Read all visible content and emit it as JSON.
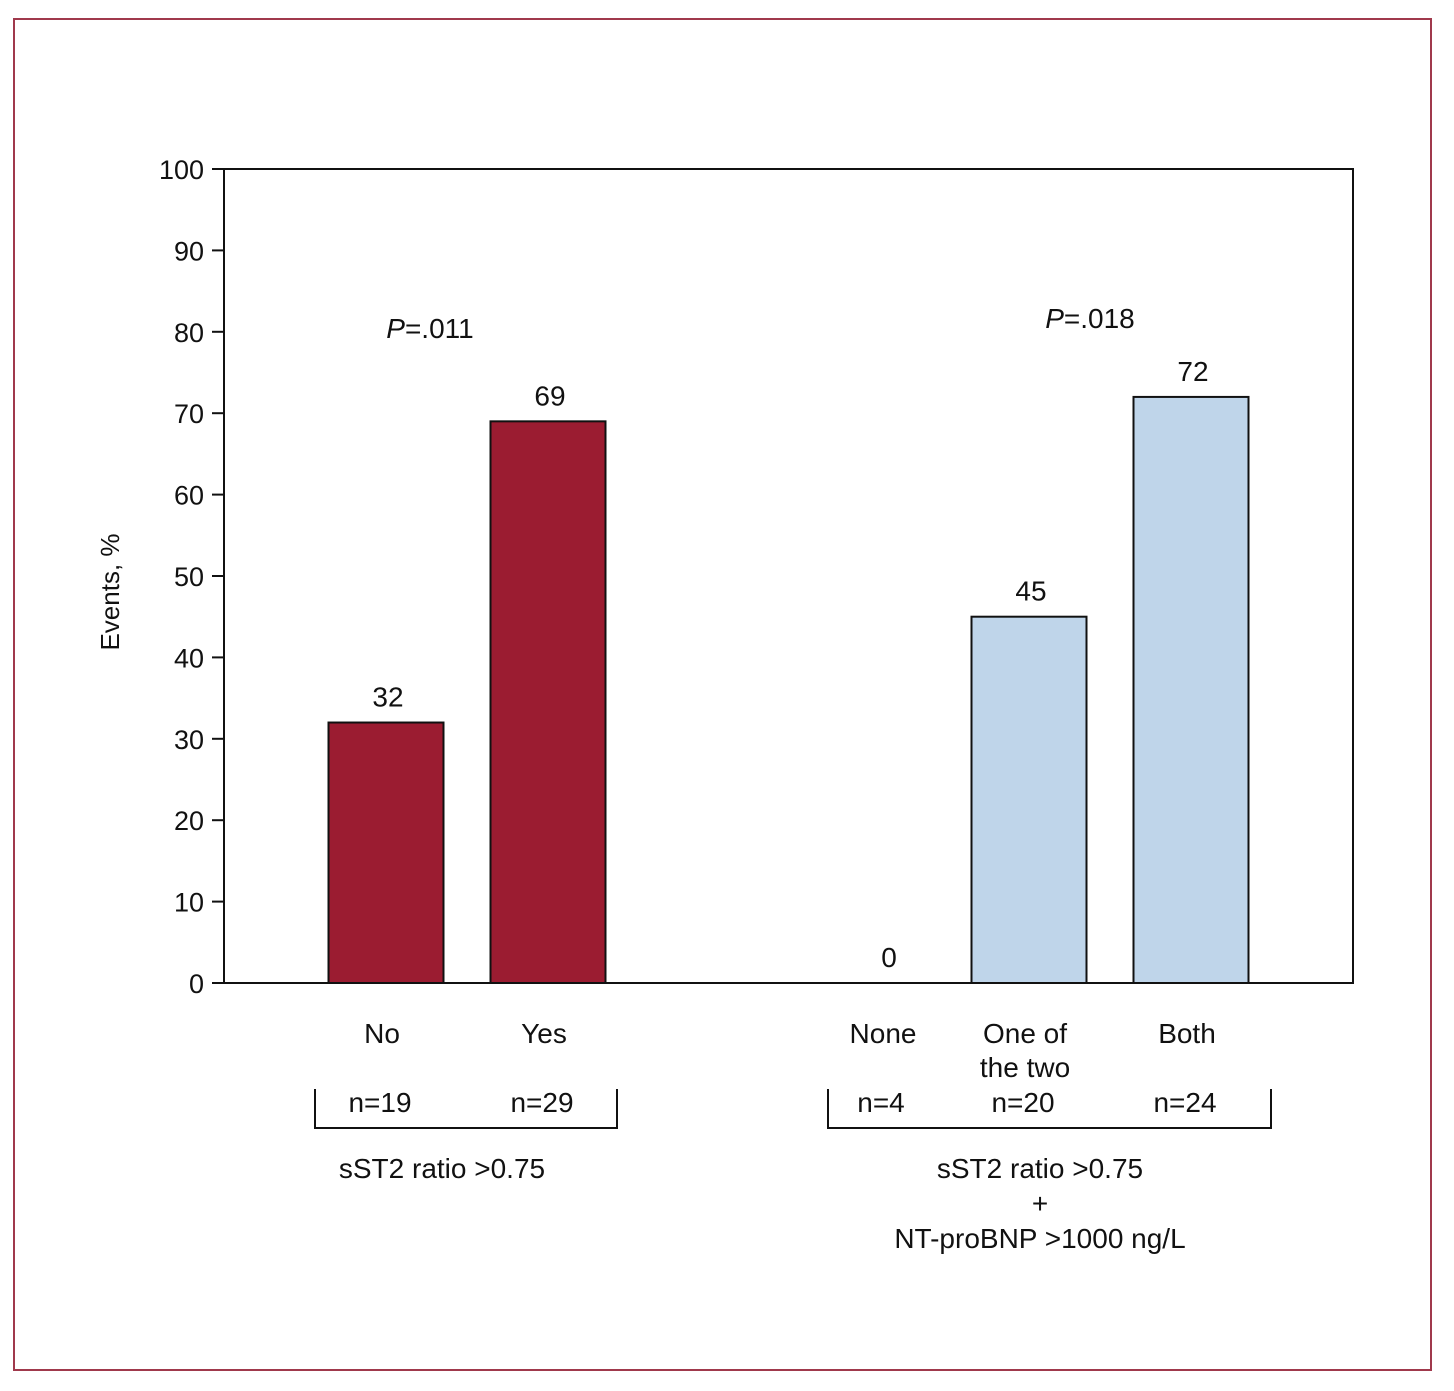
{
  "chart_data": {
    "type": "bar",
    "ylabel": "Events, %",
    "ylim": [
      0,
      100
    ],
    "yticks": [
      0,
      10,
      20,
      30,
      40,
      50,
      60,
      70,
      80,
      90,
      100
    ],
    "colors": {
      "group1": "#9b1c31",
      "group2": "#bfd5ea"
    },
    "groups": [
      {
        "name": "sST2 ratio >0.75",
        "name_lines": [
          "sST2 ratio >0.75"
        ],
        "p_label": "P",
        "p_value": "=.011",
        "color": "#9b1c31",
        "bars": [
          {
            "category": "No",
            "category_lines": [
              "No"
            ],
            "value": 32,
            "n": "n=19"
          },
          {
            "category": "Yes",
            "category_lines": [
              "Yes"
            ],
            "value": 69,
            "n": "n=29"
          }
        ]
      },
      {
        "name": "sST2 ratio >0.75 + NT-proBNP >1000 ng/L",
        "name_lines": [
          "sST2 ratio >0.75",
          "+",
          "NT-proBNP >1000 ng/L"
        ],
        "p_label": "P",
        "p_value": "=.018",
        "color": "#bfd5ea",
        "bars": [
          {
            "category": "None",
            "category_lines": [
              "None"
            ],
            "value": 0,
            "n": "n=4"
          },
          {
            "category": "One of the two",
            "category_lines": [
              "One of",
              "the two"
            ],
            "value": 45,
            "n": "n=20"
          },
          {
            "category": "Both",
            "category_lines": [
              "Both"
            ],
            "value": 72,
            "n": "n=24"
          }
        ]
      }
    ]
  }
}
